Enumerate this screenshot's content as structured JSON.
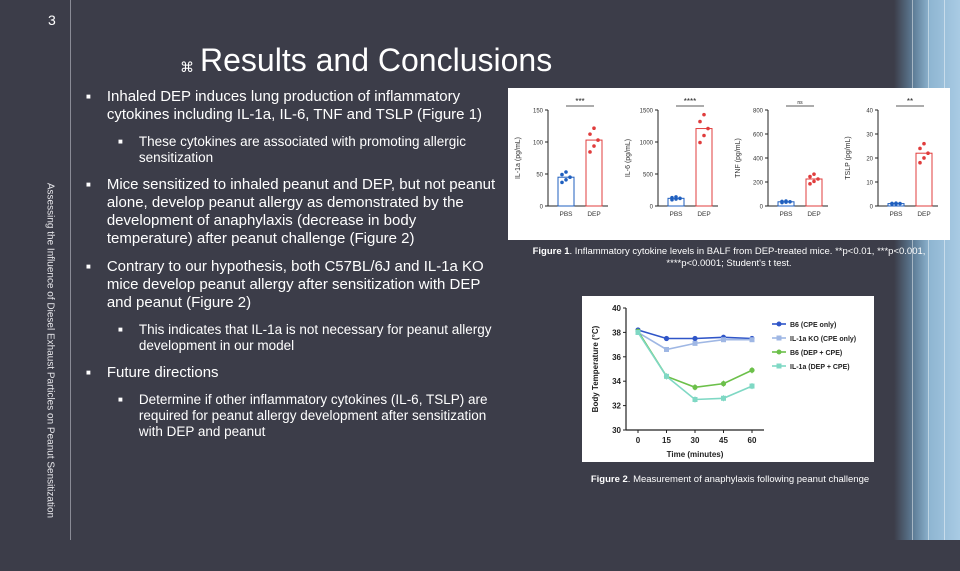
{
  "slide_number": "3",
  "title": "Results and Conclusions",
  "vertical_title": "Assessing the Influence of Diesel Exhaust Particles on Peanut Sensitization",
  "bullets": [
    {
      "text": "Inhaled DEP induces lung production of inflammatory cytokines including IL-1a, IL-6, TNF and TSLP (Figure 1)",
      "sub": [
        "These cytokines are associated with promoting allergic sensitization"
      ]
    },
    {
      "text": "Mice sensitized to inhaled peanut and DEP, but not peanut alone, develop peanut allergy as demonstrated by the development of anaphylaxis (decrease in body temperature) after peanut challenge (Figure 2)",
      "sub": []
    },
    {
      "text": "Contrary to our hypothesis, both C57BL/6J and IL-1a KO mice develop peanut allergy after sensitization with DEP and peanut (Figure 2)",
      "sub": [
        "This indicates that IL-1a is not necessary for peanut allergy development in our model"
      ]
    },
    {
      "text": "Future directions",
      "sub": [
        "Determine if other inflammatory cytokines (IL-6, TSLP) are required for peanut allergy development after sensitization with DEP and peanut"
      ]
    }
  ],
  "figure1": {
    "label": "Figure 1",
    "text": ". Inflammatory cytokine levels in BALF from DEP-treated mice. **p<0.01, ***p<0.001, ****p<0.0001; Student's t test."
  },
  "figure2": {
    "label": "Figure 2",
    "text": ". Measurement of anaphylaxis following peanut challenge"
  },
  "chart_data": [
    {
      "type": "bar",
      "title": "",
      "ylabel": "IL-1a (pg/mL)",
      "categories": [
        "PBS",
        "DEP"
      ],
      "values": [
        45,
        103
      ],
      "ylim": [
        0,
        150
      ],
      "yticks": [
        0,
        50,
        100,
        150
      ],
      "significance": "***",
      "colors": [
        "#1f5fbf",
        "#e03c3c"
      ]
    },
    {
      "type": "bar",
      "title": "",
      "ylabel": "IL-6 (pg/mL)",
      "categories": [
        "PBS",
        "DEP"
      ],
      "values": [
        120,
        1210
      ],
      "ylim": [
        0,
        1500
      ],
      "yticks": [
        0,
        500,
        1000,
        1500
      ],
      "significance": "****",
      "colors": [
        "#1f5fbf",
        "#e03c3c"
      ]
    },
    {
      "type": "bar",
      "title": "",
      "ylabel": "TNF (pg/mL)",
      "categories": [
        "PBS",
        "DEP"
      ],
      "values": [
        35,
        225
      ],
      "ylim": [
        0,
        800
      ],
      "yticks": [
        0,
        200,
        400,
        600,
        800
      ],
      "significance": "ns",
      "colors": [
        "#1f5fbf",
        "#e03c3c"
      ]
    },
    {
      "type": "bar",
      "title": "",
      "ylabel": "TSLP (pg/mL)",
      "categories": [
        "PBS",
        "DEP"
      ],
      "values": [
        1,
        22
      ],
      "ylim": [
        0,
        40
      ],
      "yticks": [
        0,
        10,
        20,
        30,
        40
      ],
      "significance": "**",
      "colors": [
        "#1f5fbf",
        "#e03c3c"
      ]
    },
    {
      "type": "line",
      "title": "",
      "xlabel": "Time (minutes)",
      "ylabel": "Body Temperature (°C)",
      "x": [
        0,
        15,
        30,
        45,
        60
      ],
      "ylim": [
        30,
        40
      ],
      "yticks": [
        30,
        32,
        34,
        36,
        38,
        40
      ],
      "legend": "right",
      "series": [
        {
          "name": "B6 (CPE only)",
          "values": [
            38.2,
            37.5,
            37.5,
            37.6,
            37.5
          ],
          "color": "#2f55c8"
        },
        {
          "name": "IL-1a KO (CPE only)",
          "values": [
            38.0,
            36.6,
            37.1,
            37.4,
            37.4
          ],
          "color": "#9fb7e4"
        },
        {
          "name": "B6 (DEP + CPE)",
          "values": [
            38.1,
            34.4,
            33.5,
            33.8,
            34.9
          ],
          "color": "#6cc04a"
        },
        {
          "name": "IL-1a (DEP + CPE)",
          "values": [
            38.0,
            34.4,
            32.5,
            32.6,
            33.6
          ],
          "color": "#7fd8c4"
        }
      ]
    }
  ]
}
